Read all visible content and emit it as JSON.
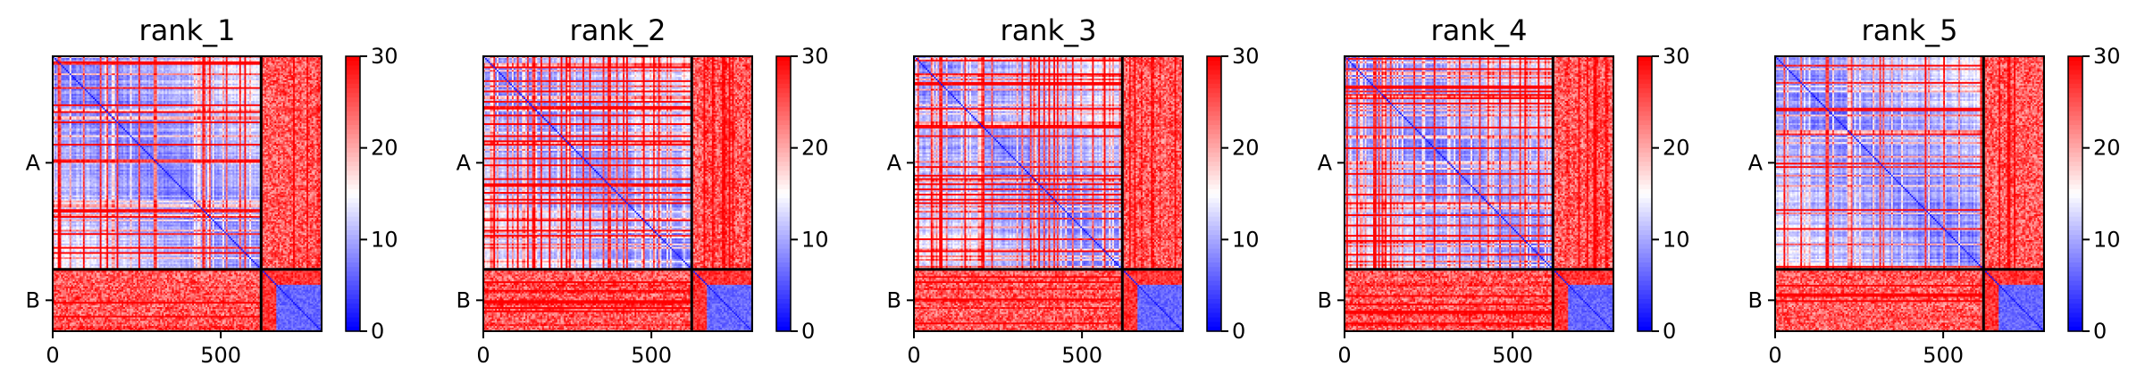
{
  "figure": {
    "description_colors": {
      "low": "#0000ff",
      "mid": "#ffffff",
      "high": "#ff0000",
      "axes": "#000000"
    }
  },
  "chart_data": [
    {
      "type": "heatmap",
      "title": "rank_1",
      "xlabel": "",
      "ylabel": "",
      "x_ticks": [
        0,
        500
      ],
      "x_tick_labels": [
        "0",
        "500"
      ],
      "xlim": [
        0,
        800
      ],
      "ylim": [
        0,
        800
      ],
      "y_tick_labels": [
        "A",
        "B"
      ],
      "chains": [
        {
          "name": "A",
          "start": 0,
          "end": 620
        },
        {
          "name": "B",
          "start": 620,
          "end": 800
        }
      ],
      "colorbar": {
        "min": 0,
        "max": 30,
        "ticks": [
          0,
          10,
          20,
          30
        ],
        "colormap": "bwr"
      },
      "grid": false,
      "seed": 11
    },
    {
      "type": "heatmap",
      "title": "rank_2",
      "xlabel": "",
      "ylabel": "",
      "x_ticks": [
        0,
        500
      ],
      "x_tick_labels": [
        "0",
        "500"
      ],
      "xlim": [
        0,
        800
      ],
      "ylim": [
        0,
        800
      ],
      "y_tick_labels": [
        "A",
        "B"
      ],
      "chains": [
        {
          "name": "A",
          "start": 0,
          "end": 620
        },
        {
          "name": "B",
          "start": 620,
          "end": 800
        }
      ],
      "colorbar": {
        "min": 0,
        "max": 30,
        "ticks": [
          0,
          10,
          20,
          30
        ],
        "colormap": "bwr"
      },
      "grid": false,
      "seed": 23
    },
    {
      "type": "heatmap",
      "title": "rank_3",
      "xlabel": "",
      "ylabel": "",
      "x_ticks": [
        0,
        500
      ],
      "x_tick_labels": [
        "0",
        "500"
      ],
      "xlim": [
        0,
        800
      ],
      "ylim": [
        0,
        800
      ],
      "y_tick_labels": [
        "A",
        "B"
      ],
      "chains": [
        {
          "name": "A",
          "start": 0,
          "end": 620
        },
        {
          "name": "B",
          "start": 620,
          "end": 800
        }
      ],
      "colorbar": {
        "min": 0,
        "max": 30,
        "ticks": [
          0,
          10,
          20,
          30
        ],
        "colormap": "bwr"
      },
      "grid": false,
      "seed": 37
    },
    {
      "type": "heatmap",
      "title": "rank_4",
      "xlabel": "",
      "ylabel": "",
      "x_ticks": [
        0,
        500
      ],
      "x_tick_labels": [
        "0",
        "500"
      ],
      "xlim": [
        0,
        800
      ],
      "ylim": [
        0,
        800
      ],
      "y_tick_labels": [
        "A",
        "B"
      ],
      "chains": [
        {
          "name": "A",
          "start": 0,
          "end": 620
        },
        {
          "name": "B",
          "start": 620,
          "end": 800
        }
      ],
      "colorbar": {
        "min": 0,
        "max": 30,
        "ticks": [
          0,
          10,
          20,
          30
        ],
        "colormap": "bwr"
      },
      "grid": false,
      "seed": 53
    },
    {
      "type": "heatmap",
      "title": "rank_5",
      "xlabel": "",
      "ylabel": "",
      "x_ticks": [
        0,
        500
      ],
      "x_tick_labels": [
        "0",
        "500"
      ],
      "xlim": [
        0,
        800
      ],
      "ylim": [
        0,
        800
      ],
      "y_tick_labels": [
        "A",
        "B"
      ],
      "chains": [
        {
          "name": "A",
          "start": 0,
          "end": 620
        },
        {
          "name": "B",
          "start": 620,
          "end": 800
        }
      ],
      "colorbar": {
        "min": 0,
        "max": 30,
        "ticks": [
          0,
          10,
          20,
          30
        ],
        "colormap": "bwr"
      },
      "grid": false,
      "seed": 71
    }
  ]
}
